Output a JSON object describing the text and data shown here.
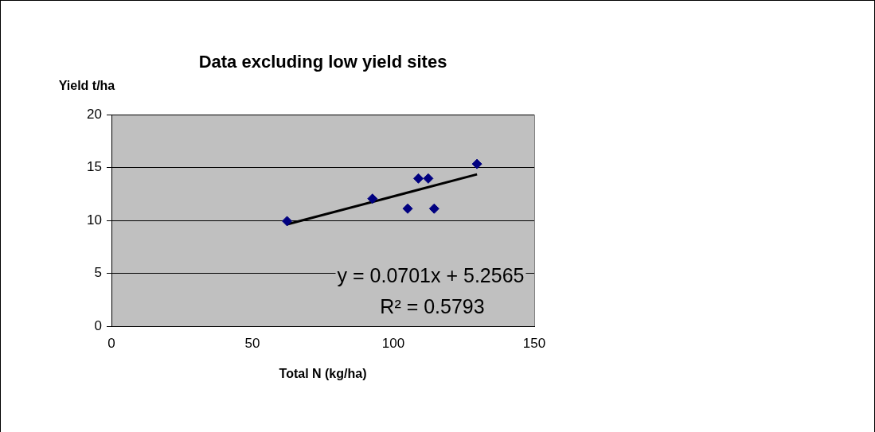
{
  "chart_data": {
    "type": "scatter",
    "title": "Data excluding low yield sites",
    "xlabel": "Total N (kg/ha)",
    "ylabel": "Yield t/ha",
    "xlim": [
      0,
      150
    ],
    "xticks": [
      0,
      50,
      100,
      150
    ],
    "ylim": [
      0,
      20
    ],
    "yticks": [
      0,
      5,
      10,
      15,
      20
    ],
    "grid": "y",
    "marker": "diamond",
    "series": [
      {
        "color": "#000080",
        "x": [
          62.3,
          92.6,
          105.1,
          108.9,
          112.4,
          114.5,
          129.7
        ],
        "values": [
          9.93,
          12.05,
          11.11,
          13.96,
          13.96,
          11.11,
          15.33
        ]
      },
      {
        "type": "line",
        "marker": "none",
        "color": "#000000",
        "x": [
          62.3,
          129.7
        ],
        "values": [
          9.62,
          14.35
        ]
      }
    ],
    "annotations": [
      "y = 0.0701x + 5.2565",
      "R² = 0.5793"
    ]
  }
}
